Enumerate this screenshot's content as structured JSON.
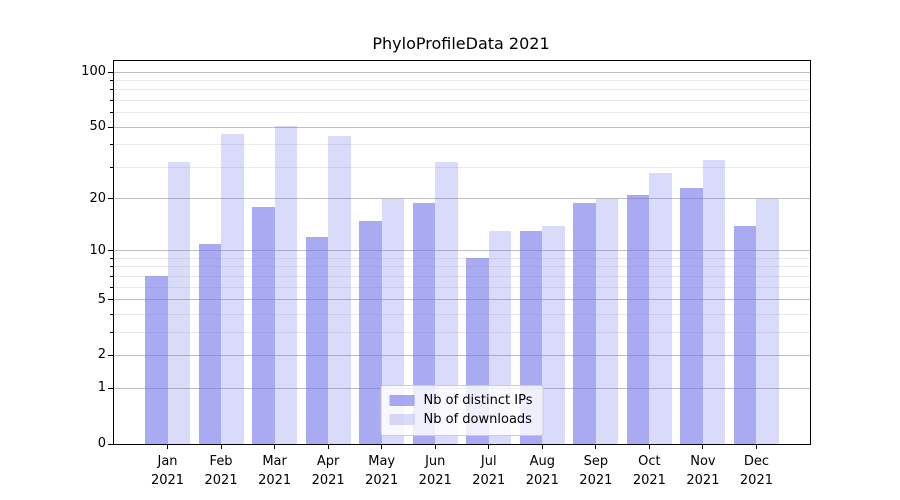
{
  "window": {
    "background": "#ffffff"
  },
  "chart_data": {
    "type": "bar",
    "title": "PhyloProfileData 2021",
    "categories": [
      "Jan 2021",
      "Feb 2021",
      "Mar 2021",
      "Apr 2021",
      "May 2021",
      "Jun 2021",
      "Jul 2021",
      "Aug 2021",
      "Sep 2021",
      "Oct 2021",
      "Nov 2021",
      "Dec 2021"
    ],
    "series": [
      {
        "name": "Nb of distinct IPs",
        "color": "#7676eb",
        "alpha": 0.62,
        "apparent_color": "#aaaaf2",
        "values": [
          7,
          11,
          18,
          12,
          15,
          19,
          9,
          13,
          19,
          21,
          23,
          14
        ]
      },
      {
        "name": "Nb of downloads",
        "color": "#7676eb",
        "alpha": 0.27,
        "apparent_color": "#dadaf9",
        "values": [
          32,
          46,
          51,
          45,
          20,
          32,
          13,
          14,
          20,
          28,
          33,
          20
        ]
      }
    ],
    "xlabel": "",
    "ylabel": "",
    "yscale": "log1p",
    "ylim": [
      0,
      115
    ],
    "yticks_major": [
      0,
      1,
      2,
      5,
      10,
      20,
      50,
      100
    ],
    "yticks_minor": [
      3,
      4,
      6,
      7,
      8,
      9,
      30,
      40,
      60,
      70,
      80,
      90
    ],
    "grid": "on",
    "legend_position": "lower center",
    "colors": {
      "grid_major": "#bebebe",
      "grid_minor": "#e9e9e9",
      "spine": "#000000",
      "text": "#000000",
      "legend_border": "#cccccc",
      "legend_background": "#ffffff"
    }
  }
}
